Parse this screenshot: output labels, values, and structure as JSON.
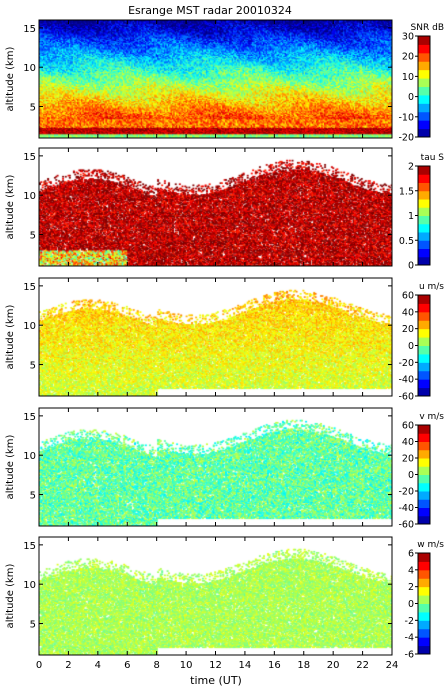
{
  "chart_data": {
    "title": "Esrange MST radar 20010324",
    "type": "heatmap",
    "xlabel": "time (UT)",
    "xlim": [
      0,
      24
    ],
    "xticks": [
      0,
      2,
      4,
      6,
      8,
      10,
      12,
      14,
      16,
      18,
      20,
      22,
      24
    ],
    "panels": [
      {
        "name": "SNR",
        "ylabel": "altitude (km)",
        "ylim": [
          1,
          16
        ],
        "yticks": [
          5,
          10,
          15
        ],
        "colorbar_label": "SNR dB",
        "colorbar_range": [
          -20,
          30
        ],
        "colorbar_ticks": [
          -20,
          -10,
          0,
          10,
          20,
          30
        ]
      },
      {
        "name": "tau",
        "ylabel": "altitude (km)",
        "ylim": [
          1,
          16
        ],
        "yticks": [
          5,
          10,
          15
        ],
        "colorbar_label": "tau S",
        "colorbar_range": [
          0,
          2
        ],
        "colorbar_ticks": [
          0,
          0.5,
          1,
          1.5,
          2
        ]
      },
      {
        "name": "u",
        "ylabel": "altitude (km)",
        "ylim": [
          1,
          16
        ],
        "yticks": [
          5,
          10,
          15
        ],
        "colorbar_label": "u m/s",
        "colorbar_range": [
          -60,
          60
        ],
        "colorbar_ticks": [
          -60,
          -40,
          -20,
          0,
          20,
          40,
          60
        ]
      },
      {
        "name": "v",
        "ylabel": "altitude (km)",
        "ylim": [
          1,
          16
        ],
        "yticks": [
          5,
          10,
          15
        ],
        "colorbar_label": "v m/s",
        "colorbar_range": [
          -60,
          60
        ],
        "colorbar_ticks": [
          -60,
          -40,
          -20,
          0,
          20,
          40,
          60
        ]
      },
      {
        "name": "w",
        "ylabel": "altitude (km)",
        "ylim": [
          1,
          16
        ],
        "yticks": [
          5,
          10,
          15
        ],
        "colorbar_label": "w m/s",
        "colorbar_range": [
          -6,
          6
        ],
        "colorbar_ticks": [
          -6,
          -4,
          -2,
          0,
          2,
          4,
          6
        ]
      }
    ]
  }
}
